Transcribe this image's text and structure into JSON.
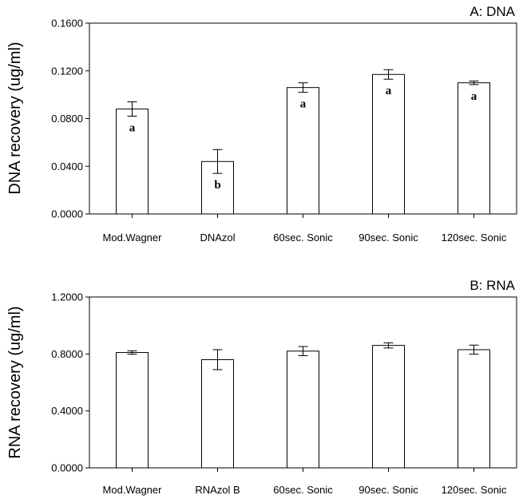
{
  "chart_data": [
    {
      "type": "bar",
      "title": "A: DNA",
      "ylabel": "DNA recovery (ug/ml)",
      "xlabel": "",
      "ylim": [
        0,
        0.16
      ],
      "yticks": [
        "0.0000",
        "0.0400",
        "0.0800",
        "0.1200",
        "0.1600"
      ],
      "ytick_values": [
        0,
        0.04,
        0.08,
        0.12,
        0.16
      ],
      "categories": [
        "Mod.Wagner",
        "DNAzol",
        "60sec. Sonic",
        "90sec. Sonic",
        "120sec. Sonic"
      ],
      "values": [
        0.088,
        0.044,
        0.106,
        0.117,
        0.11
      ],
      "errors": [
        0.006,
        0.01,
        0.004,
        0.004,
        0.0015
      ],
      "annotations": [
        "a",
        "b",
        "a",
        "a",
        "a"
      ],
      "grid": false
    },
    {
      "type": "bar",
      "title": "B: RNA",
      "ylabel": "RNA recovery (ug/ml)",
      "xlabel": "",
      "ylim": [
        0,
        1.2
      ],
      "yticks": [
        "0.0000",
        "0.4000",
        "0.8000",
        "1.2000"
      ],
      "ytick_values": [
        0,
        0.4,
        0.8,
        1.2
      ],
      "categories": [
        "Mod.Wagner",
        "RNAzol B",
        "60sec. Sonic",
        "90sec. Sonic",
        "120sec. Sonic"
      ],
      "values": [
        0.81,
        0.76,
        0.82,
        0.86,
        0.83
      ],
      "errors": [
        0.012,
        0.07,
        0.032,
        0.018,
        0.032
      ],
      "annotations": [
        "",
        "",
        "",
        "",
        ""
      ],
      "grid": false
    }
  ]
}
